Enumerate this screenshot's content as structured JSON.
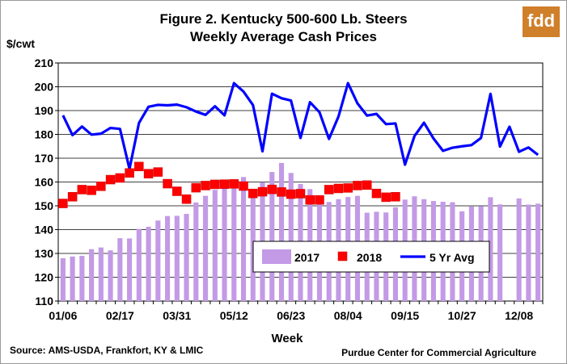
{
  "logo": {
    "text": "fdd"
  },
  "chart_data": {
    "type": "bar+scatter+line",
    "title": "Figure 2. Kentucky 500-600 Lb. Steers",
    "subtitle": "Weekly Average Cash Prices",
    "ylabel": "$/cwt",
    "xlabel": "Week",
    "ylim": [
      110,
      210
    ],
    "yticks": [
      110,
      120,
      130,
      140,
      150,
      160,
      170,
      180,
      190,
      200,
      210
    ],
    "x_tick_labels": [
      {
        "week": 1,
        "label": "01/06"
      },
      {
        "week": 7,
        "label": "02/17"
      },
      {
        "week": 13,
        "label": "03/31"
      },
      {
        "week": 19,
        "label": "05/12"
      },
      {
        "week": 25,
        "label": "06/23"
      },
      {
        "week": 31,
        "label": "08/04"
      },
      {
        "week": 37,
        "label": "09/15"
      },
      {
        "week": 43,
        "label": "10/27"
      },
      {
        "week": 49,
        "label": "12/08"
      }
    ],
    "legend_position": "bottom-right, inside plot",
    "grid": "horizontal",
    "series": [
      {
        "name": "2017",
        "type": "bar",
        "color": "#c39ae6",
        "values": [
          128,
          128.7,
          129,
          131.8,
          132.5,
          131.3,
          136.4,
          136.3,
          140.3,
          141.2,
          143.8,
          145.7,
          145.8,
          146.6,
          151.4,
          154.2,
          156.7,
          158.6,
          160.8,
          162.1,
          157,
          159.9,
          164.2,
          168,
          163.8,
          159.2,
          157,
          152,
          151.6,
          152.8,
          153.7,
          154.2,
          147.1,
          147.5,
          147.2,
          149.4,
          152.6,
          154,
          152.8,
          152,
          151.7,
          151.5,
          147.7,
          149.7,
          149.9,
          153.6,
          150.6,
          null,
          153.1,
          150.5,
          150.9
        ]
      },
      {
        "name": "2018",
        "type": "marker",
        "color": "#ff0000",
        "values": [
          151,
          153.8,
          156.8,
          156.5,
          158.2,
          161,
          161.7,
          163.8,
          166.5,
          163.5,
          164.2,
          159.3,
          156.1,
          152.8,
          157.6,
          158.5,
          159,
          159.1,
          159.2,
          158.3,
          155.2,
          155.9,
          156.9,
          155.8,
          154.9,
          155.1,
          152.5,
          152.5,
          156.8,
          157.3,
          157.5,
          158.5,
          158.7,
          155.2,
          153.6,
          153.8
        ]
      },
      {
        "name": "5 Yr Avg",
        "type": "line",
        "color": "#0000ff",
        "values": [
          188,
          179.7,
          183.3,
          179.9,
          180.3,
          182.7,
          182.3,
          165.5,
          184.8,
          191.6,
          192.4,
          192.2,
          192.5,
          191.4,
          189.6,
          188.2,
          191.8,
          188,
          201.5,
          198,
          192.3,
          172.9,
          197.1,
          195.2,
          194.2,
          178.5,
          193.5,
          189.3,
          178.1,
          187.5,
          201.5,
          193,
          187.9,
          188.6,
          184.3,
          184.6,
          167.3,
          179.3,
          184.9,
          178.3,
          173.1,
          174.4,
          175,
          175.5,
          178.5,
          197,
          174.9,
          183.2,
          172.7,
          174.5,
          171.4
        ]
      }
    ]
  },
  "footer": {
    "source": "Source:  AMS-USDA,  Frankfort, KY & LMIC",
    "credit": "Purdue Center for Commercial Agriculture"
  }
}
